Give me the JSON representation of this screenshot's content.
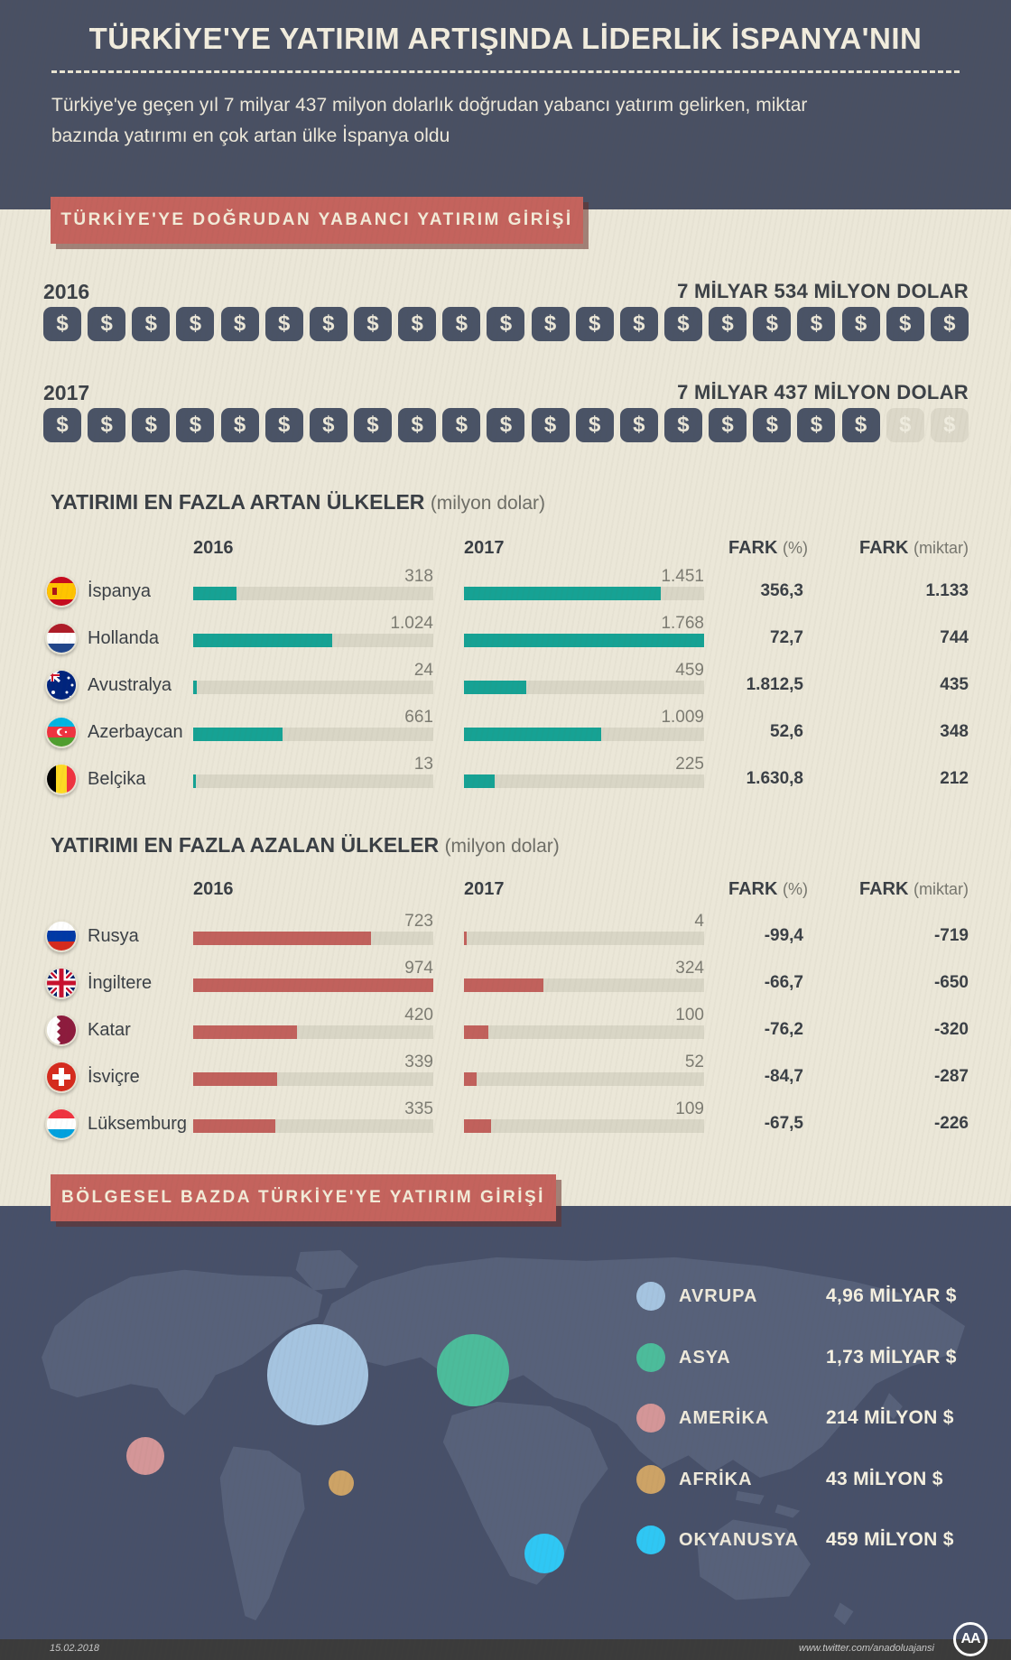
{
  "header": {
    "title": "TÜRKİYE'YE YATIRIM ARTIŞINDA LİDERLİK İSPANYA'NIN",
    "subtitle_line1": "Türkiye'ye geçen yıl 7 milyar 437 milyon dolarlık doğrudan yabancı yatırım gelirken, miktar",
    "subtitle_line2": "bazında yatırımı en çok artan ülke İspanya oldu"
  },
  "fdi": {
    "banner": "TÜRKİYE'YE DOĞRUDAN YABANCI YATIRIM GİRİŞİ",
    "rows": [
      {
        "year": "2016",
        "amount": "7 MİLYAR 534 MİLYON DOLAR",
        "icons_filled": 21,
        "icons_faded": 0
      },
      {
        "year": "2017",
        "amount": "7 MİLYAR 437 MİLYON DOLAR",
        "icons_filled": 19,
        "icons_faded": 2
      }
    ]
  },
  "increase_section": {
    "title": "YATIRIMI EN FAZLA ARTAN ÜLKELER",
    "unit": "(milyon dolar)",
    "col_2016": "2016",
    "col_2017": "2017",
    "col_fark": "FARK",
    "col_fark_pct_unit": "(%)",
    "col_fark_amt_unit": "(miktar)",
    "bar_max": 1768,
    "rows": [
      {
        "country": "İspanya",
        "flag": "spain",
        "v2016": "318",
        "v2017": "1.451",
        "n2016": 318,
        "n2017": 1451,
        "fark_pct": "356,3",
        "fark_amt": "1.133"
      },
      {
        "country": "Hollanda",
        "flag": "netherlands",
        "v2016": "1.024",
        "v2017": "1.768",
        "n2016": 1024,
        "n2017": 1768,
        "fark_pct": "72,7",
        "fark_amt": "744"
      },
      {
        "country": "Avustralya",
        "flag": "australia",
        "v2016": "24",
        "v2017": "459",
        "n2016": 24,
        "n2017": 459,
        "fark_pct": "1.812,5",
        "fark_amt": "435"
      },
      {
        "country": "Azerbaycan",
        "flag": "azerbaijan",
        "v2016": "661",
        "v2017": "1.009",
        "n2016": 661,
        "n2017": 1009,
        "fark_pct": "52,6",
        "fark_amt": "348"
      },
      {
        "country": "Belçika",
        "flag": "belgium",
        "v2016": "13",
        "v2017": "225",
        "n2016": 13,
        "n2017": 225,
        "fark_pct": "1.630,8",
        "fark_amt": "212"
      }
    ]
  },
  "decrease_section": {
    "title": "YATIRIMI EN FAZLA AZALAN ÜLKELER",
    "unit": "(milyon dolar)",
    "col_2016": "2016",
    "col_2017": "2017",
    "col_fark": "FARK",
    "col_fark_pct_unit": "(%)",
    "col_fark_amt_unit": "(miktar)",
    "bar_max": 974,
    "rows": [
      {
        "country": "Rusya",
        "flag": "russia",
        "v2016": "723",
        "v2017": "4",
        "n2016": 723,
        "n2017": 4,
        "fark_pct": "-99,4",
        "fark_amt": "-719"
      },
      {
        "country": "İngiltere",
        "flag": "uk",
        "v2016": "974",
        "v2017": "324",
        "n2016": 974,
        "n2017": 324,
        "fark_pct": "-66,7",
        "fark_amt": "-650"
      },
      {
        "country": "Katar",
        "flag": "qatar",
        "v2016": "420",
        "v2017": "100",
        "n2016": 420,
        "n2017": 100,
        "fark_pct": "-76,2",
        "fark_amt": "-320"
      },
      {
        "country": "İsviçre",
        "flag": "switzerland",
        "v2016": "339",
        "v2017": "52",
        "n2016": 339,
        "n2017": 52,
        "fark_pct": "-84,7",
        "fark_amt": "-287"
      },
      {
        "country": "Lüksemburg",
        "flag": "luxembourg",
        "v2016": "335",
        "v2017": "109",
        "n2016": 335,
        "n2017": 109,
        "fark_pct": "-67,5",
        "fark_amt": "-226"
      }
    ]
  },
  "map_section": {
    "banner": "BÖLGESEL BAZDA TÜRKİYE'YE YATIRIM GİRİŞİ",
    "legend": [
      {
        "label": "AVRUPA",
        "value": "4,96 MİLYAR $",
        "color": "#a5c4e0"
      },
      {
        "label": "ASYA",
        "value": "1,73 MİLYAR $",
        "color": "#4cbc9b"
      },
      {
        "label": "AMERİKA",
        "value": "214 MİLYON $",
        "color": "#d49698"
      },
      {
        "label": "AFRİKA",
        "value": "43 MİLYON $",
        "color": "#cda366"
      },
      {
        "label": "OKYANUSYA",
        "value": "459 MİLYON $",
        "color": "#2fc7f4"
      }
    ]
  },
  "footer": {
    "date": "15.02.2018",
    "url": "www.twitter.com/anadoluajansi",
    "logo": "AA"
  },
  "colors": {
    "background": "#ebe7d8",
    "header_slate": "#495063",
    "banner_red": "#c4635d",
    "bar_teal": "#16a294",
    "bar_red": "#c1615c",
    "track_gray": "#d9d6c6",
    "map_bg": "#475069",
    "map_land": "#57617a",
    "icon_slate": "#4a5366",
    "icon_faded": "#dcd8c9",
    "footer_bg": "#3b3b3b"
  },
  "chart_data": [
    {
      "type": "bar",
      "subtype": "pictogram-dollar-row",
      "title": "TÜRKİYE'YE DOĞRUDAN YABANCI YATIRIM GİRİŞİ",
      "categories": [
        "2016",
        "2017"
      ],
      "values": [
        7534,
        7437
      ],
      "value_labels": [
        "7 MİLYAR 534 MİLYON DOLAR",
        "7 MİLYAR 437 MİLYON DOLAR"
      ],
      "icons_total_per_row": 21,
      "icons_filled": [
        21,
        19
      ]
    },
    {
      "type": "bar",
      "title": "YATIRIMI EN FAZLA ARTAN ÜLKELER (milyon dolar)",
      "categories": [
        "İspanya",
        "Hollanda",
        "Avustralya",
        "Azerbaycan",
        "Belçika"
      ],
      "series": [
        {
          "name": "2016",
          "values": [
            318,
            1024,
            24,
            661,
            13
          ]
        },
        {
          "name": "2017",
          "values": [
            1451,
            1768,
            459,
            1009,
            225
          ]
        }
      ],
      "fark_pct": [
        356.3,
        72.7,
        1812.5,
        52.6,
        1630.8
      ],
      "fark_miktar": [
        1133,
        744,
        435,
        348,
        212
      ],
      "xlim": [
        0,
        1768
      ],
      "grid": false,
      "bar_color": "#16a294"
    },
    {
      "type": "bar",
      "title": "YATIRIMI EN FAZLA AZALAN ÜLKELER (milyon dolar)",
      "categories": [
        "Rusya",
        "İngiltere",
        "Katar",
        "İsviçre",
        "Lüksemburg"
      ],
      "series": [
        {
          "name": "2016",
          "values": [
            723,
            974,
            420,
            339,
            335
          ]
        },
        {
          "name": "2017",
          "values": [
            4,
            324,
            100,
            52,
            109
          ]
        }
      ],
      "fark_pct": [
        -99.4,
        -66.7,
        -76.2,
        -84.7,
        -67.5
      ],
      "fark_miktar": [
        -719,
        -650,
        -320,
        -287,
        -226
      ],
      "xlim": [
        0,
        974
      ],
      "grid": false,
      "bar_color": "#c1615c"
    },
    {
      "type": "bubble-map",
      "title": "BÖLGESEL BAZDA TÜRKİYE'YE YATIRIM GİRİŞİ",
      "categories": [
        "AVRUPA",
        "ASYA",
        "AMERİKA",
        "AFRİKA",
        "OKYANUSYA"
      ],
      "value_labels": [
        "4,96 MİLYAR $",
        "1,73 MİLYAR $",
        "214 MİLYON $",
        "43 MİLYON $",
        "459 MİLYON $"
      ],
      "values_musd": [
        4960,
        1730,
        214,
        43,
        459
      ]
    }
  ]
}
